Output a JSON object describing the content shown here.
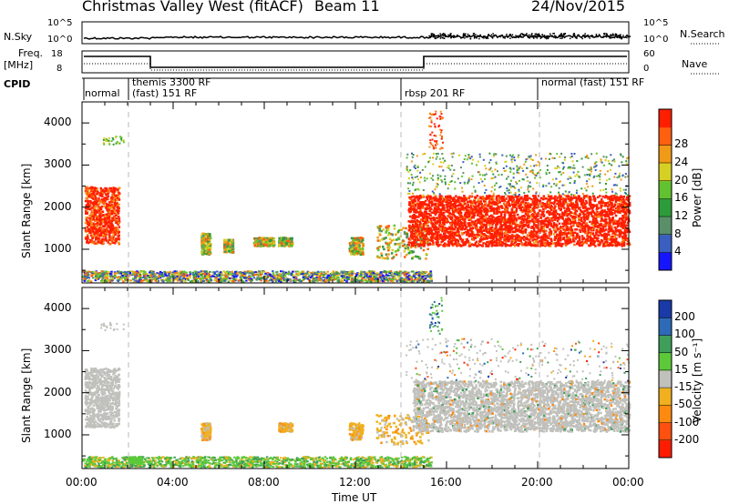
{
  "header": {
    "title": "Christmas Valley West (fitACF)",
    "beam": "Beam 11",
    "date": "24/Nov/2015"
  },
  "strips": {
    "nsky_label": "N.Sky",
    "nsky_ticks": [
      "10^5",
      "10^0"
    ],
    "nsearch_label": "N.Search",
    "freq_label_1": "Freq.",
    "freq_label_2": "[MHz]",
    "freq_ticks": [
      "18",
      "8"
    ],
    "nave_label": "Nave",
    "nave_ticks": [
      "60",
      "0"
    ],
    "cpid_label": "CPID",
    "cpid_segments": [
      {
        "label": "normal",
        "start_hour": 0,
        "end_hour": 2
      },
      {
        "label": "themis 3300 RF",
        "label2": "(fast) 151 RF",
        "start_hour": 2,
        "end_hour": 14
      },
      {
        "label": "rbsp 201 RF",
        "start_hour": 14,
        "end_hour": 20
      },
      {
        "label": "normal (fast) 151 RF",
        "start_hour": 20,
        "end_hour": 24
      }
    ]
  },
  "axes": {
    "ylabel": "Slant Range [km]",
    "xlabel": "Time UT",
    "x_ticks": [
      "00:00",
      "04:00",
      "08:00",
      "12:00",
      "16:00",
      "20:00",
      "00:00"
    ],
    "y_ticks": [
      "1000",
      "2000",
      "3000",
      "4000"
    ]
  },
  "colorbars": {
    "power": {
      "label": "Power [dB]",
      "ticks": [
        "4",
        "8",
        "12",
        "16",
        "20",
        "24",
        "28"
      ],
      "colors": [
        "#1515ff",
        "#3a5fc0",
        "#5a8f6a",
        "#2e9b3a",
        "#62c232",
        "#d7d024",
        "#f09a18",
        "#ff6010",
        "#ff1e00"
      ]
    },
    "velocity": {
      "label": "Velocity [m s⁻¹]",
      "ticks": [
        "200",
        "100",
        "50",
        "15",
        "-15",
        "-50",
        "-100",
        "-200"
      ],
      "colors": [
        "#1a3aa8",
        "#2e6ab8",
        "#3f9e5a",
        "#5cc83a",
        "#c0c0bc",
        "#f0b020",
        "#ff8a10",
        "#ff5010",
        "#ff1c00"
      ]
    }
  },
  "chart_data": [
    {
      "type": "heatmap",
      "title": "Power",
      "xlabel": "Time UT",
      "ylabel": "Slant Range [km]",
      "xlim": [
        0,
        24
      ],
      "ylim": [
        200,
        4500
      ],
      "colorbar_label": "Power [dB]",
      "regions": [
        {
          "t0": 0.1,
          "t1": 1.6,
          "r0": 1100,
          "r1": 2600,
          "value_db": 28
        },
        {
          "t0": 14.3,
          "t1": 24,
          "r0": 1100,
          "r1": 2300,
          "value_db": 28
        },
        {
          "t0": 14.2,
          "t1": 24,
          "r0": 2300,
          "r1": 3300,
          "value_db": 12
        },
        {
          "t0": 12.9,
          "t1": 15.2,
          "r0": 800,
          "r1": 1600,
          "value_db": 20
        },
        {
          "t0": 0,
          "t1": 15.3,
          "r0": 250,
          "r1": 500,
          "value_db": 12
        }
      ]
    },
    {
      "type": "heatmap",
      "title": "Velocity",
      "xlabel": "Time UT",
      "ylabel": "Slant Range [km]",
      "xlim": [
        0,
        24
      ],
      "ylim": [
        200,
        4500
      ],
      "colorbar_label": "Velocity [m s⁻¹]",
      "regions": [
        {
          "t0": 0.1,
          "t1": 1.6,
          "r0": 1200,
          "r1": 2600,
          "value_ms": 0
        },
        {
          "t0": 14.5,
          "t1": 24,
          "r0": 1100,
          "r1": 2300,
          "value_ms": 0
        },
        {
          "t0": 12.9,
          "t1": 15.2,
          "r0": 800,
          "r1": 1500,
          "value_ms": -50
        },
        {
          "t0": 2,
          "t1": 2.6,
          "r0": 350,
          "r1": 500,
          "value_ms": 50
        },
        {
          "t0": 0,
          "t1": 15.3,
          "r0": 250,
          "r1": 500,
          "value_ms": 15
        }
      ]
    }
  ]
}
